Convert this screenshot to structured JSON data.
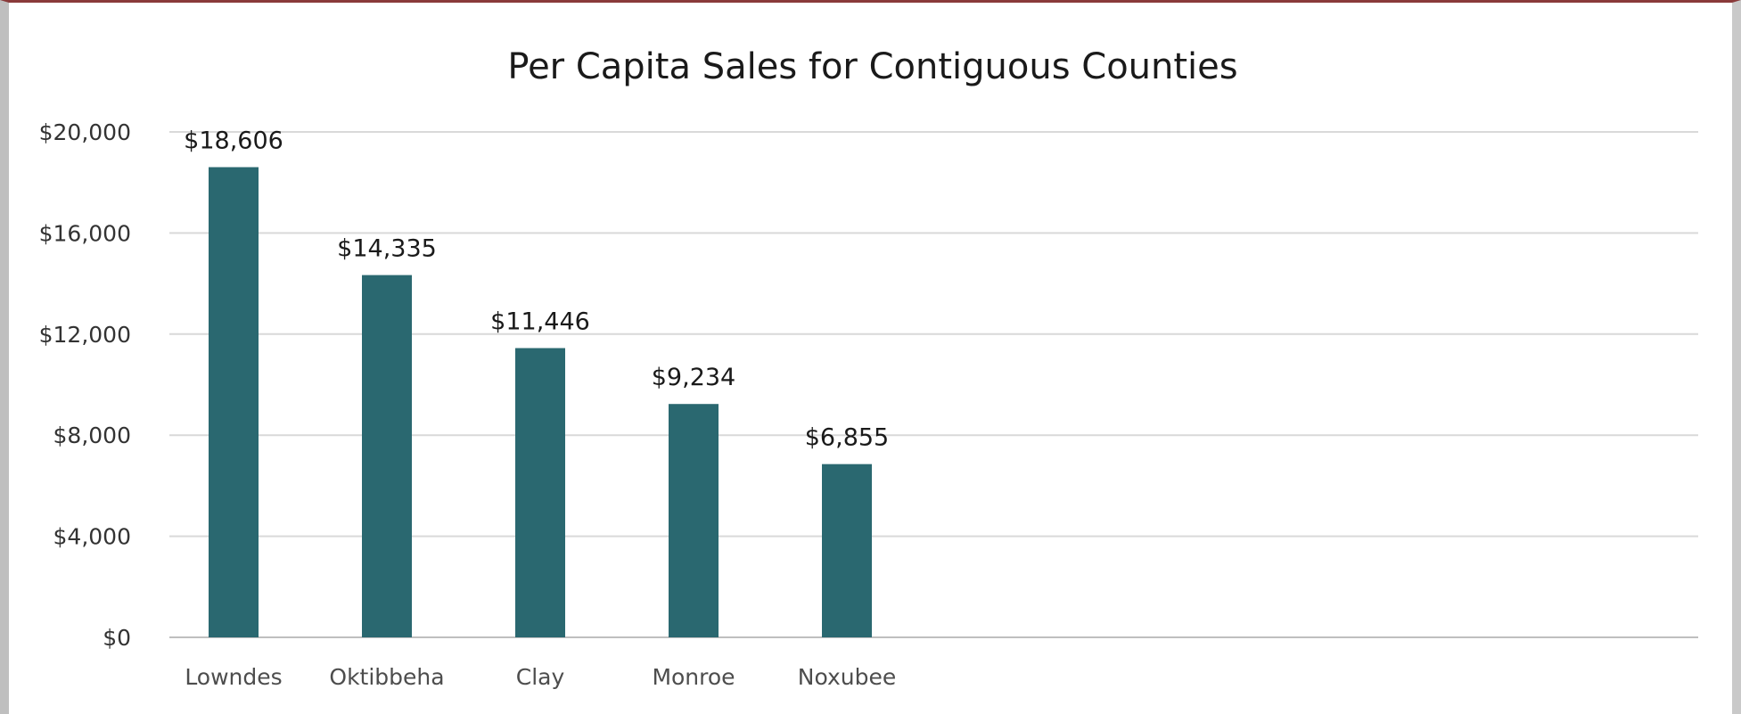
{
  "chart_data": {
    "type": "bar",
    "title": "Per Capita Sales for Contiguous Counties",
    "categories": [
      "Lowndes",
      "Oktibbeha",
      "Clay",
      "Monroe",
      "Noxubee"
    ],
    "values": [
      18606,
      14335,
      11446,
      9234,
      6855
    ],
    "data_labels": [
      "$18,606",
      "$14,335",
      "$11,446",
      "$9,234",
      "$6,855"
    ],
    "yticks": [
      0,
      4000,
      8000,
      12000,
      16000,
      20000
    ],
    "ytick_labels": [
      "$0",
      "$4,000",
      "$8,000",
      "$12,000",
      "$16,000",
      "$20,000"
    ],
    "ylim": [
      0,
      20000
    ],
    "xlabel": "",
    "ylabel": "",
    "grid": true,
    "legend": "none",
    "colors": {
      "bar": "#2a6870",
      "grid": "#d9d9d9",
      "axis": "#bfbfbf"
    }
  }
}
